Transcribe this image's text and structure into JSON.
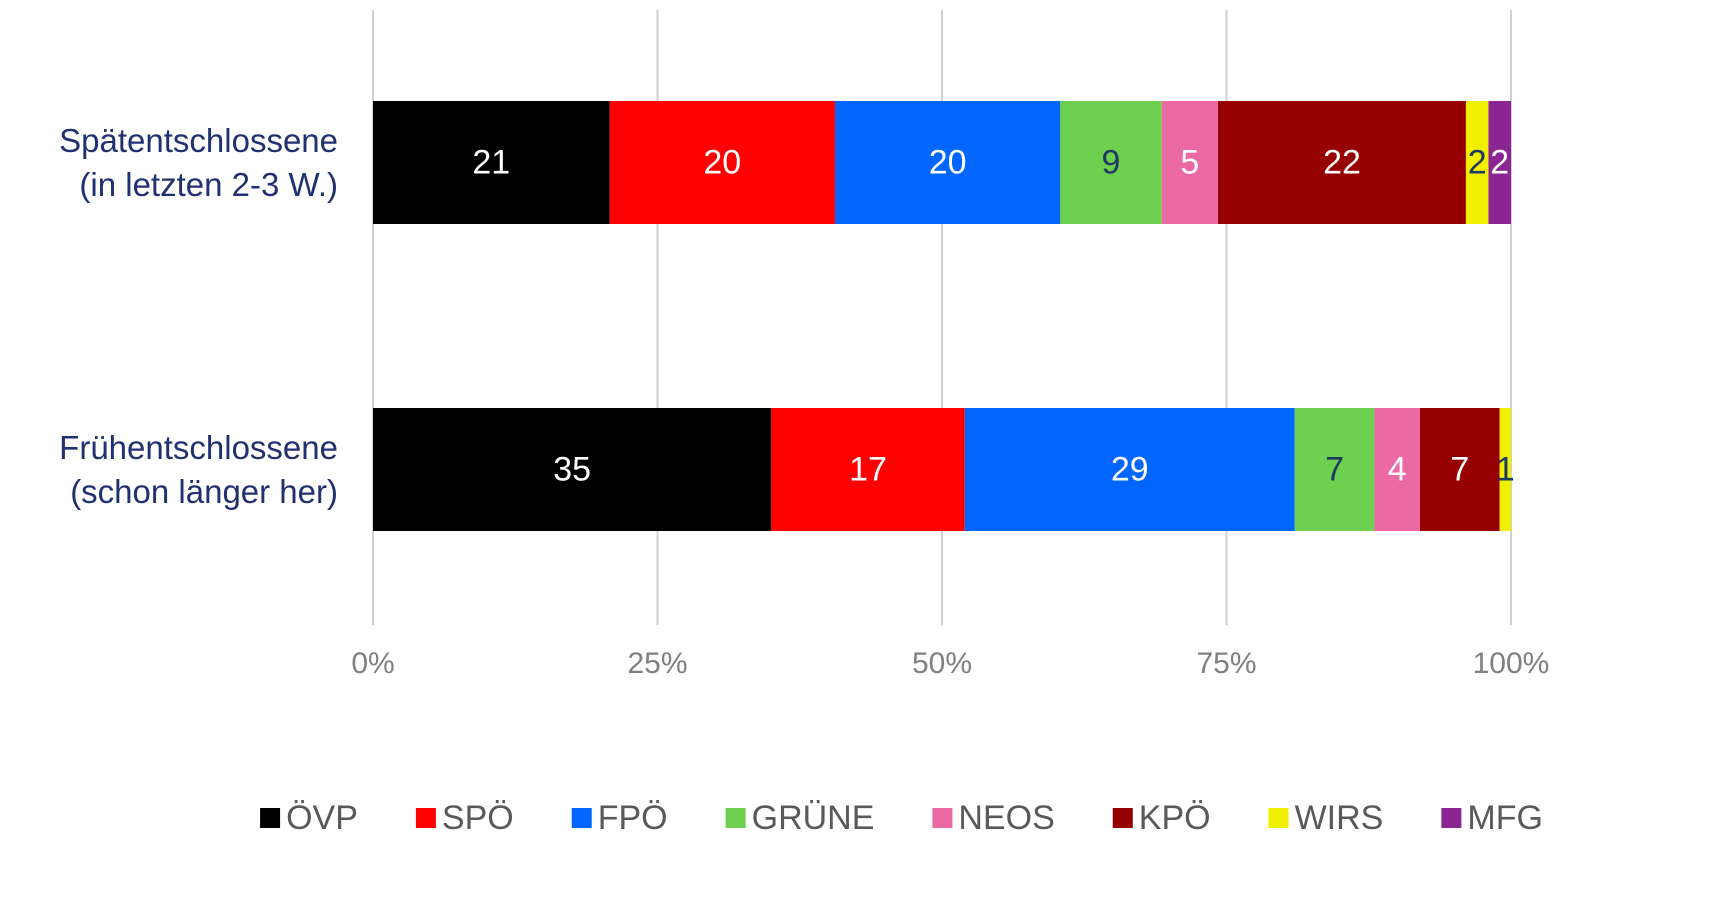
{
  "chart_data": {
    "type": "stacked-bar-horizontal",
    "stacking": "percent",
    "categories": [
      "Spätentschlossene\n(in letzten 2-3 W.)",
      "Frühentschlossene\n(schon länger her)"
    ],
    "series": [
      {
        "name": "ÖVP",
        "color": "#000000",
        "label_color": "#ffffff",
        "values": [
          21,
          35
        ]
      },
      {
        "name": "SPÖ",
        "color": "#ff0000",
        "label_color": "#ffffff",
        "values": [
          20,
          17
        ]
      },
      {
        "name": "FPÖ",
        "color": "#0066ff",
        "label_color": "#ffffff",
        "values": [
          20,
          29
        ]
      },
      {
        "name": "GRÜNE",
        "color": "#6dd04f",
        "label_color": "#203864",
        "values": [
          9,
          7
        ]
      },
      {
        "name": "NEOS",
        "color": "#ec6aa3",
        "label_color": "#ffffff",
        "values": [
          5,
          4
        ]
      },
      {
        "name": "KPÖ",
        "color": "#960000",
        "label_color": "#ffffff",
        "values": [
          22,
          7
        ]
      },
      {
        "name": "WIRS",
        "color": "#f0f000",
        "label_color": "#203864",
        "values": [
          2,
          1
        ]
      },
      {
        "name": "MFG",
        "color": "#8b2593",
        "label_color": "#ffffff",
        "values": [
          2,
          null
        ]
      }
    ],
    "xlim": [
      0,
      100
    ],
    "xticks": [
      {
        "value": 0,
        "label": "0%"
      },
      {
        "value": 25,
        "label": "25%"
      },
      {
        "value": 50,
        "label": "50%"
      },
      {
        "value": 75,
        "label": "75%"
      },
      {
        "value": 100,
        "label": "100%"
      }
    ],
    "grid": true,
    "legend": "bottom"
  }
}
